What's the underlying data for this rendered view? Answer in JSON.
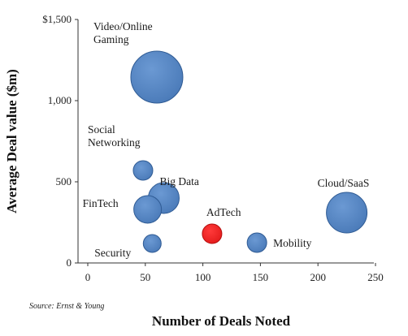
{
  "chart_data": {
    "type": "bubble",
    "title": "",
    "xlabel": "Number of Deals Noted",
    "ylabel": "Average Deal value ($m)",
    "xlim": [
      0,
      250
    ],
    "ylim": [
      0,
      1500
    ],
    "x_ticks": [
      {
        "value": 0,
        "label": "0"
      },
      {
        "value": 50,
        "label": "50"
      },
      {
        "value": 100,
        "label": "100"
      },
      {
        "value": 150,
        "label": "150"
      },
      {
        "value": 200,
        "label": "200"
      },
      {
        "value": 250,
        "label": "250"
      }
    ],
    "y_ticks": [
      {
        "value": 0,
        "label": "0"
      },
      {
        "value": 500,
        "label": "500"
      },
      {
        "value": 1000,
        "label": "1,000"
      },
      {
        "value": 1500,
        "label": "$1,500"
      }
    ],
    "grid": false,
    "legend": "none",
    "source": "Source: Ernst & Young",
    "colors": {
      "default": "#4a7ab8",
      "highlight": "#e31b1b",
      "outline": "#2f5b94"
    },
    "points": [
      {
        "name": "Video/Online Gaming",
        "x": 60,
        "y": 1145,
        "size": 32,
        "highlight": false
      },
      {
        "name": "Social Networking",
        "x": 48,
        "y": 570,
        "size": 12,
        "highlight": false
      },
      {
        "name": "Big Data",
        "x": 66,
        "y": 400,
        "size": 19,
        "highlight": false
      },
      {
        "name": "FinTech",
        "x": 52,
        "y": 330,
        "size": 17,
        "highlight": false
      },
      {
        "name": "AdTech",
        "x": 108,
        "y": 180,
        "size": 12,
        "highlight": true
      },
      {
        "name": "Security",
        "x": 56,
        "y": 120,
        "size": 11,
        "highlight": false
      },
      {
        "name": "Mobility",
        "x": 147,
        "y": 125,
        "size": 12,
        "highlight": false
      },
      {
        "name": "Cloud/SaaS",
        "x": 225,
        "y": 310,
        "size": 25,
        "highlight": false
      }
    ]
  }
}
